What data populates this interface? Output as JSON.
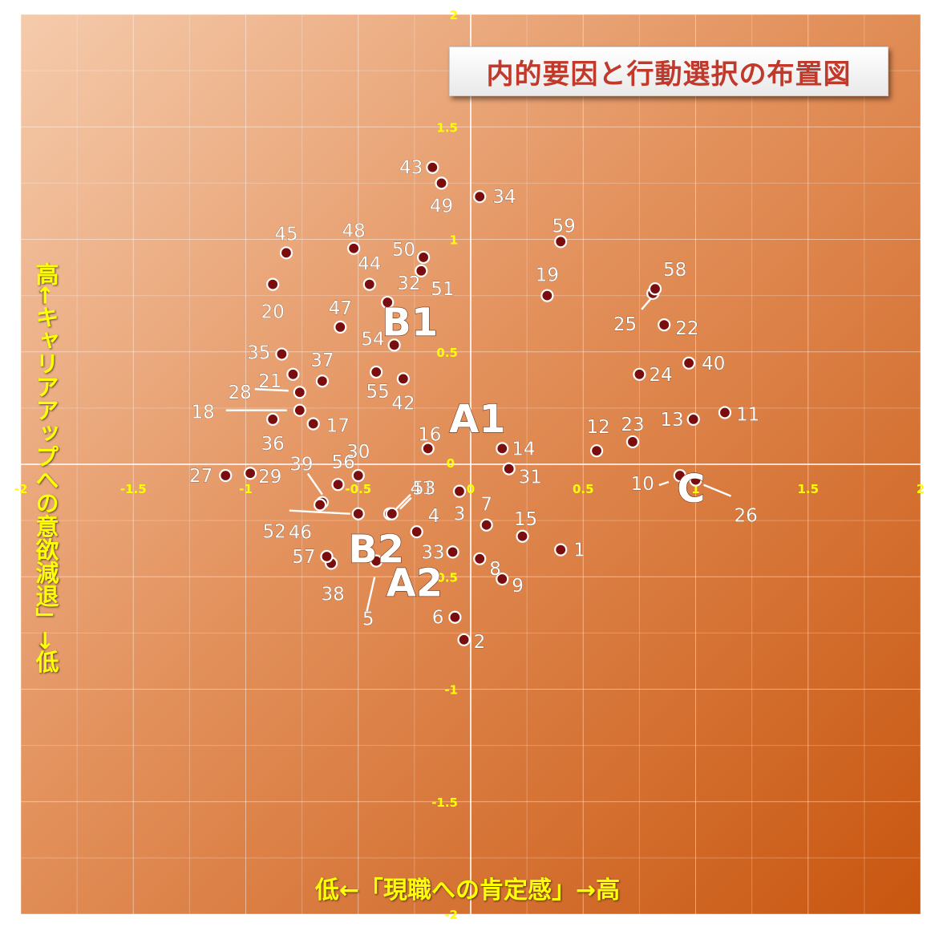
{
  "chart_data": {
    "type": "scatter",
    "title": "内的要因と行動選択の布置図",
    "xlabel": "低←「現職への肯定感」→高",
    "ylabel": "高←キャリアアップへの意欲減退」→低",
    "xlim": [
      -2,
      2
    ],
    "ylim": [
      -2,
      2
    ],
    "xticks": [
      "-2",
      "-1.5",
      "-1",
      "-0.5",
      "0",
      "0.5",
      "1",
      "1.5",
      "2"
    ],
    "yticks": [
      "2",
      "1.5",
      "1",
      "0.5",
      "0",
      "-0.5",
      "-1",
      "-1.5",
      "-2"
    ],
    "grid": true,
    "colors": {
      "point": "#7a0e0e",
      "axis": "#ffffff",
      "tick": "#ffff00",
      "group": "#ffffff"
    },
    "points": [
      {
        "label": "1",
        "x": 0.4,
        "y": -0.38
      },
      {
        "label": "2",
        "x": -0.03,
        "y": -0.78
      },
      {
        "label": "3",
        "x": -0.05,
        "y": -0.12
      },
      {
        "label": "4",
        "x": -0.24,
        "y": -0.3
      },
      {
        "label": "5",
        "x": -0.42,
        "y": -0.43
      },
      {
        "label": "6",
        "x": -0.07,
        "y": -0.68
      },
      {
        "label": "7",
        "x": 0.07,
        "y": -0.27
      },
      {
        "label": "8",
        "x": 0.04,
        "y": -0.42
      },
      {
        "label": "9",
        "x": 0.14,
        "y": -0.51
      },
      {
        "label": "10",
        "x": 0.93,
        "y": -0.05
      },
      {
        "label": "11",
        "x": 1.13,
        "y": 0.23
      },
      {
        "label": "12",
        "x": 0.56,
        "y": 0.06
      },
      {
        "label": "13",
        "x": 0.99,
        "y": 0.2
      },
      {
        "label": "14",
        "x": 0.14,
        "y": 0.07
      },
      {
        "label": "15",
        "x": 0.23,
        "y": -0.32
      },
      {
        "label": "16",
        "x": -0.19,
        "y": 0.07
      },
      {
        "label": "17",
        "x": -0.7,
        "y": 0.18
      },
      {
        "label": "18",
        "x": -0.76,
        "y": 0.24
      },
      {
        "label": "19",
        "x": 0.34,
        "y": 0.75
      },
      {
        "label": "20",
        "x": -0.88,
        "y": 0.8
      },
      {
        "label": "21",
        "x": -0.79,
        "y": 0.4
      },
      {
        "label": "22",
        "x": 0.86,
        "y": 0.62
      },
      {
        "label": "23",
        "x": 0.72,
        "y": 0.1
      },
      {
        "label": "24",
        "x": 0.75,
        "y": 0.4
      },
      {
        "label": "25",
        "x": 0.81,
        "y": 0.76
      },
      {
        "label": "26",
        "x": 1.0,
        "y": -0.07
      },
      {
        "label": "27",
        "x": -1.09,
        "y": -0.05
      },
      {
        "label": "28",
        "x": -0.76,
        "y": 0.32
      },
      {
        "label": "29",
        "x": -0.98,
        "y": -0.04
      },
      {
        "label": "30",
        "x": -0.5,
        "y": -0.05
      },
      {
        "label": "31",
        "x": 0.17,
        "y": -0.02
      },
      {
        "label": "32",
        "x": -0.37,
        "y": 0.72
      },
      {
        "label": "33",
        "x": -0.08,
        "y": -0.39
      },
      {
        "label": "34",
        "x": 0.04,
        "y": 1.19
      },
      {
        "label": "35",
        "x": -0.84,
        "y": 0.49
      },
      {
        "label": "36",
        "x": -0.88,
        "y": 0.2
      },
      {
        "label": "37",
        "x": -0.66,
        "y": 0.37
      },
      {
        "label": "38",
        "x": -0.62,
        "y": -0.44
      },
      {
        "label": "39",
        "x": -0.66,
        "y": -0.17
      },
      {
        "label": "40",
        "x": 0.97,
        "y": 0.45
      },
      {
        "label": "41",
        "x": -0.36,
        "y": -0.22
      },
      {
        "label": "42",
        "x": -0.3,
        "y": 0.38
      },
      {
        "label": "43",
        "x": -0.17,
        "y": 1.32
      },
      {
        "label": "44",
        "x": -0.45,
        "y": 0.8
      },
      {
        "label": "45",
        "x": -0.82,
        "y": 0.94
      },
      {
        "label": "46",
        "x": -0.67,
        "y": -0.18
      },
      {
        "label": "47",
        "x": -0.58,
        "y": 0.61
      },
      {
        "label": "48",
        "x": -0.52,
        "y": 0.96
      },
      {
        "label": "49",
        "x": -0.13,
        "y": 1.25
      },
      {
        "label": "50",
        "x": -0.21,
        "y": 0.92
      },
      {
        "label": "51",
        "x": -0.22,
        "y": 0.86
      },
      {
        "label": "52",
        "x": -0.5,
        "y": -0.22
      },
      {
        "label": "53",
        "x": -0.35,
        "y": -0.22
      },
      {
        "label": "54",
        "x": -0.34,
        "y": 0.53
      },
      {
        "label": "55",
        "x": -0.42,
        "y": 0.41
      },
      {
        "label": "56",
        "x": -0.59,
        "y": -0.09
      },
      {
        "label": "57",
        "x": -0.64,
        "y": -0.41
      },
      {
        "label": "58",
        "x": 0.82,
        "y": 0.78
      },
      {
        "label": "59",
        "x": 0.4,
        "y": 0.99
      }
    ],
    "groups": [
      {
        "label": "A1",
        "x": 0.03,
        "y": 0.2
      },
      {
        "label": "A2",
        "x": -0.25,
        "y": -0.53
      },
      {
        "label": "B1",
        "x": -0.27,
        "y": 0.63
      },
      {
        "label": "B2",
        "x": -0.42,
        "y": -0.38
      },
      {
        "label": "C",
        "x": 0.98,
        "y": -0.11
      }
    ]
  }
}
